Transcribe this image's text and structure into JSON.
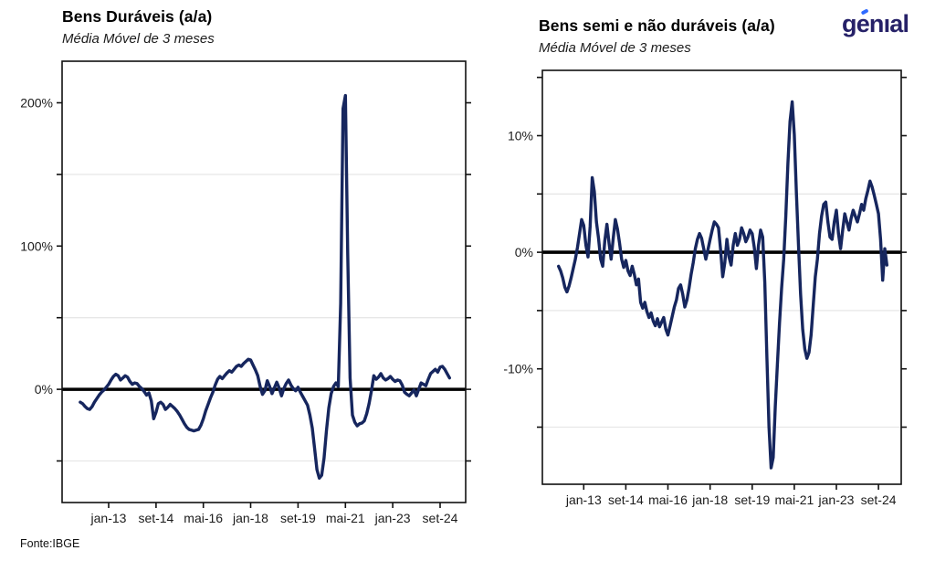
{
  "page": {
    "background": "#ffffff",
    "source_note": "Fonte:IBGE"
  },
  "logo": {
    "text": "genıal",
    "color": "#262168",
    "accent_color": "#2f6bff"
  },
  "chart_data": [
    {
      "type": "line",
      "title": "Bens Duráveis (a/a)",
      "subtitle": "Média Móvel de 3 meses",
      "unit": "%",
      "line_color": "#16265e",
      "zero_line_color": "#000000",
      "grid_color": "#e7e7e7",
      "legend": "none",
      "x_start": "2012-01",
      "x_end": "2025-01",
      "frequency": "monthly",
      "x_tick_labels": [
        "jan-13",
        "set-14",
        "mai-16",
        "jan-18",
        "set-19",
        "mai-21",
        "jan-23",
        "set-24"
      ],
      "x_tick_indices": [
        12,
        32,
        52,
        72,
        92,
        112,
        132,
        152
      ],
      "y_tick_labels": [
        "200%",
        "100%",
        "0%"
      ],
      "y_ticks": [
        200,
        100,
        0
      ],
      "y_axis_ticks": [
        200,
        150,
        100,
        50,
        0,
        -50
      ],
      "y_minor_gridlines": [
        150,
        50,
        -50
      ],
      "ylim": [
        -79,
        229
      ],
      "values": [
        -9,
        -10,
        -12,
        -13.5,
        -14,
        -12,
        -9,
        -6.5,
        -4,
        -2,
        -0.5,
        1.5,
        3.5,
        6.5,
        9,
        10.5,
        9.5,
        6.5,
        8,
        9.5,
        8.5,
        5.5,
        3.5,
        4.5,
        4,
        2,
        0.5,
        -1.5,
        -4,
        -2.5,
        -8,
        -20.5,
        -16,
        -10,
        -9,
        -10.5,
        -14,
        -12.5,
        -10.5,
        -12,
        -13.5,
        -15.5,
        -18,
        -21,
        -24,
        -26.5,
        -28,
        -28.5,
        -29,
        -28.5,
        -28,
        -25,
        -20.5,
        -15,
        -10.5,
        -6,
        -2,
        3,
        7,
        9,
        7.5,
        9.5,
        11.5,
        13,
        12,
        14,
        16,
        17,
        16,
        18,
        19.5,
        21,
        20.5,
        17,
        13.5,
        9.5,
        2,
        -3.5,
        -1,
        6,
        2,
        -3,
        1,
        5,
        1,
        -4.5,
        0.5,
        4,
        6.5,
        3,
        0.5,
        -1,
        1.5,
        -2,
        -5,
        -8,
        -11,
        -18,
        -27,
        -41,
        -56,
        -62,
        -60,
        -48,
        -29,
        -13,
        -3,
        2,
        4.5,
        2,
        60,
        196,
        205,
        95,
        8,
        -18,
        -23,
        -25.5,
        -24,
        -23.5,
        -22,
        -17,
        -10,
        -1,
        9.5,
        7,
        8.5,
        11,
        8,
        6.5,
        7.5,
        9,
        7,
        5.5,
        6.5,
        6,
        3,
        -2,
        -3.5,
        -4.5,
        -2.5,
        -0.5,
        -4.5,
        0,
        4.5,
        3.5,
        2.5,
        7,
        11,
        12.5,
        14,
        12,
        15.5,
        16,
        14,
        11,
        8
      ]
    },
    {
      "type": "line",
      "title": "Bens semi e não duráveis (a/a)",
      "subtitle": "Média Móvel de 3 meses",
      "unit": "%",
      "line_color": "#16265e",
      "zero_line_color": "#000000",
      "grid_color": "#e7e7e7",
      "legend": "none",
      "x_start": "2012-01",
      "x_end": "2025-01",
      "frequency": "monthly",
      "x_tick_labels": [
        "jan-13",
        "set-14",
        "mai-16",
        "jan-18",
        "set-19",
        "mai-21",
        "jan-23",
        "set-24"
      ],
      "x_tick_indices": [
        12,
        32,
        52,
        72,
        92,
        112,
        132,
        152
      ],
      "y_tick_labels": [
        "10%",
        "0%",
        "-10%"
      ],
      "y_ticks": [
        10,
        0,
        -10
      ],
      "y_axis_ticks": [
        15,
        10,
        5,
        0,
        -5,
        -10,
        -15
      ],
      "y_minor_gridlines": [
        5,
        -5,
        -15
      ],
      "ylim": [
        -19.9,
        15.6
      ],
      "values": [
        -1.2,
        -1.6,
        -2.2,
        -3,
        -3.4,
        -2.9,
        -2.2,
        -1.4,
        -0.6,
        0.4,
        1.6,
        2.8,
        2.3,
        0.6,
        -0.4,
        2.2,
        6.4,
        5.2,
        2.6,
        1.2,
        -0.6,
        -1.2,
        1,
        2.4,
        0.8,
        -0.6,
        1.2,
        2.8,
        2,
        0.8,
        -0.6,
        -1.3,
        -0.7,
        -1.6,
        -2,
        -1.2,
        -1.9,
        -2.8,
        -2.3,
        -4.3,
        -4.8,
        -4.3,
        -5.1,
        -5.6,
        -5.2,
        -5.9,
        -6.3,
        -5.7,
        -6.4,
        -6,
        -5.6,
        -6.6,
        -7.1,
        -6.3,
        -5.5,
        -4.7,
        -4.1,
        -3.1,
        -2.8,
        -3.6,
        -4.7,
        -4.1,
        -3.1,
        -1.9,
        -0.9,
        0.3,
        1.1,
        1.6,
        1.2,
        0.3,
        -0.6,
        0.2,
        1.1,
        1.9,
        2.6,
        2.4,
        2.1,
        0.2,
        -2.1,
        -0.9,
        1.1,
        -0.4,
        -1.1,
        0.6,
        1.6,
        0.6,
        1.1,
        2.1,
        1.6,
        0.9,
        1.3,
        1.9,
        1.6,
        0.4,
        -1.4,
        0.6,
        1.9,
        1.3,
        -2.6,
        -9,
        -15,
        -18.5,
        -17.6,
        -13.2,
        -9.6,
        -6.1,
        -3.1,
        -0.6,
        3.1,
        7.6,
        11.2,
        12.9,
        10.1,
        5.1,
        0.6,
        -3.6,
        -6.6,
        -8.3,
        -9.1,
        -8.6,
        -7.1,
        -4.6,
        -2.1,
        -0.6,
        1.6,
        3.1,
        4.1,
        4.3,
        2.6,
        1.3,
        1.1,
        2.6,
        3.6,
        1.6,
        0.3,
        1.9,
        3.3,
        2.6,
        1.9,
        2.9,
        3.6,
        3.1,
        2.6,
        3.3,
        4.1,
        3.6,
        4.6,
        5.3,
        6.1,
        5.6,
        4.9,
        4.1,
        3.3,
        1.1,
        -2.4,
        0.3,
        -1.1
      ]
    }
  ]
}
